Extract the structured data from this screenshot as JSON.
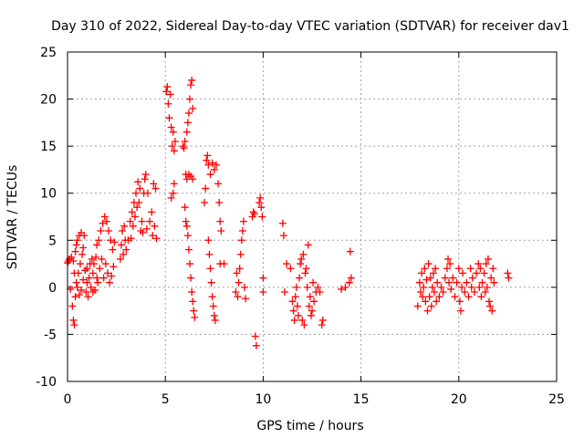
{
  "chart_data": {
    "type": "scatter",
    "title": "Day 310 of 2022, Sidereal Day-to-day VTEC variation (SDTVAR) for receiver dav1",
    "xlabel": "GPS time / hours",
    "ylabel": "SDTVAR / TECUs",
    "xlim": [
      0,
      25
    ],
    "ylim": [
      -10,
      25
    ],
    "xticks": [
      0,
      5,
      10,
      15,
      20,
      25
    ],
    "yticks": [
      -10,
      -5,
      0,
      5,
      10,
      15,
      20,
      25
    ],
    "grid": true,
    "marker": "+",
    "color": "#ff0000",
    "series": [
      {
        "name": "SDTVAR",
        "points": [
          [
            0.0,
            2.6
          ],
          [
            0.05,
            2.8
          ],
          [
            0.1,
            3.0
          ],
          [
            0.15,
            -0.2
          ],
          [
            0.2,
            3.2
          ],
          [
            0.25,
            -2.0
          ],
          [
            0.3,
            -3.5
          ],
          [
            0.3,
            2.8
          ],
          [
            0.35,
            -4.0
          ],
          [
            0.35,
            1.5
          ],
          [
            0.4,
            -1.0
          ],
          [
            0.4,
            3.8
          ],
          [
            0.45,
            0.5
          ],
          [
            0.45,
            4.5
          ],
          [
            0.5,
            5.0
          ],
          [
            0.5,
            0.0
          ],
          [
            0.55,
            1.5
          ],
          [
            0.6,
            5.5
          ],
          [
            0.6,
            -0.8
          ],
          [
            0.65,
            2.5
          ],
          [
            0.7,
            5.8
          ],
          [
            0.7,
            -0.3
          ],
          [
            0.75,
            3.5
          ],
          [
            0.8,
            4.2
          ],
          [
            0.8,
            0.8
          ],
          [
            0.85,
            5.5
          ],
          [
            0.9,
            1.8
          ],
          [
            0.95,
            -0.5
          ],
          [
            1.0,
            0.5
          ],
          [
            1.0,
            2.0
          ],
          [
            1.05,
            -1.0
          ],
          [
            1.1,
            1.0
          ],
          [
            1.15,
            2.5
          ],
          [
            1.2,
            0.0
          ],
          [
            1.25,
            3.0
          ],
          [
            1.3,
            -0.5
          ],
          [
            1.3,
            1.5
          ],
          [
            1.35,
            2.5
          ],
          [
            1.4,
            -0.3
          ],
          [
            1.45,
            3.2
          ],
          [
            1.5,
            1.0
          ],
          [
            1.5,
            4.5
          ],
          [
            1.55,
            0.5
          ],
          [
            1.6,
            5.0
          ],
          [
            1.65,
            2.0
          ],
          [
            1.7,
            6.0
          ],
          [
            1.75,
            3.0
          ],
          [
            1.8,
            6.8
          ],
          [
            1.85,
            1.0
          ],
          [
            1.9,
            7.5
          ],
          [
            1.95,
            2.5
          ],
          [
            2.0,
            7.0
          ],
          [
            2.05,
            1.5
          ],
          [
            2.1,
            6.0
          ],
          [
            2.15,
            0.5
          ],
          [
            2.2,
            5.0
          ],
          [
            2.25,
            1.2
          ],
          [
            2.3,
            4.0
          ],
          [
            2.35,
            2.2
          ],
          [
            2.4,
            4.8
          ],
          [
            2.7,
            3.0
          ],
          [
            2.75,
            4.5
          ],
          [
            2.8,
            6.0
          ],
          [
            2.85,
            3.5
          ],
          [
            2.9,
            6.5
          ],
          [
            2.95,
            5.0
          ],
          [
            3.0,
            4.0
          ],
          [
            3.1,
            5.0
          ],
          [
            3.2,
            7.0
          ],
          [
            3.25,
            5.2
          ],
          [
            3.3,
            8.0
          ],
          [
            3.35,
            6.5
          ],
          [
            3.4,
            9.0
          ],
          [
            3.45,
            7.5
          ],
          [
            3.5,
            10.0
          ],
          [
            3.55,
            8.5
          ],
          [
            3.6,
            11.2
          ],
          [
            3.65,
            9.0
          ],
          [
            3.7,
            10.5
          ],
          [
            3.75,
            6.0
          ],
          [
            3.8,
            7.0
          ],
          [
            3.85,
            5.8
          ],
          [
            3.9,
            10.0
          ],
          [
            3.95,
            11.5
          ],
          [
            4.0,
            12.0
          ],
          [
            4.05,
            6.2
          ],
          [
            4.1,
            10.0
          ],
          [
            4.2,
            7.0
          ],
          [
            4.3,
            8.0
          ],
          [
            4.35,
            5.5
          ],
          [
            4.4,
            11.0
          ],
          [
            4.45,
            6.5
          ],
          [
            4.5,
            10.5
          ],
          [
            4.55,
            5.2
          ],
          [
            5.05,
            20.8
          ],
          [
            5.1,
            21.3
          ],
          [
            5.15,
            19.5
          ],
          [
            5.2,
            18.0
          ],
          [
            5.25,
            20.5
          ],
          [
            5.3,
            17.0
          ],
          [
            5.35,
            15.0
          ],
          [
            5.4,
            16.5
          ],
          [
            5.45,
            14.5
          ],
          [
            5.5,
            15.5
          ],
          [
            5.4,
            10.0
          ],
          [
            5.45,
            11.0
          ],
          [
            5.3,
            9.5
          ],
          [
            5.9,
            15.0
          ],
          [
            5.95,
            14.8
          ],
          [
            6.0,
            15.5
          ],
          [
            6.05,
            12.0
          ],
          [
            6.1,
            16.5
          ],
          [
            6.15,
            17.5
          ],
          [
            6.2,
            18.5
          ],
          [
            6.25,
            20.0
          ],
          [
            6.3,
            21.5
          ],
          [
            6.35,
            22.0
          ],
          [
            6.4,
            19.0
          ],
          [
            6.1,
            11.5
          ],
          [
            6.2,
            12.0
          ],
          [
            6.3,
            11.8
          ],
          [
            6.4,
            11.5
          ],
          [
            6.0,
            8.5
          ],
          [
            6.05,
            7.0
          ],
          [
            6.1,
            6.5
          ],
          [
            6.15,
            5.5
          ],
          [
            6.2,
            4.0
          ],
          [
            6.25,
            2.5
          ],
          [
            6.3,
            1.0
          ],
          [
            6.35,
            -0.5
          ],
          [
            6.4,
            -1.5
          ],
          [
            6.45,
            -2.5
          ],
          [
            6.5,
            -3.2
          ],
          [
            7.0,
            9.0
          ],
          [
            7.05,
            10.5
          ],
          [
            7.1,
            13.5
          ],
          [
            7.15,
            14.0
          ],
          [
            7.2,
            13.0
          ],
          [
            7.3,
            12.0
          ],
          [
            7.4,
            13.2
          ],
          [
            7.5,
            12.5
          ],
          [
            7.6,
            13.0
          ],
          [
            7.2,
            5.0
          ],
          [
            7.25,
            3.5
          ],
          [
            7.3,
            2.0
          ],
          [
            7.35,
            0.5
          ],
          [
            7.4,
            -1.0
          ],
          [
            7.45,
            -2.0
          ],
          [
            7.5,
            -3.0
          ],
          [
            7.55,
            -3.5
          ],
          [
            7.7,
            11.0
          ],
          [
            7.75,
            9.0
          ],
          [
            7.8,
            7.0
          ],
          [
            7.85,
            6.0
          ],
          [
            7.8,
            2.5
          ],
          [
            8.0,
            2.5
          ],
          [
            8.6,
            -0.5
          ],
          [
            8.65,
            1.5
          ],
          [
            8.7,
            -1.0
          ],
          [
            8.75,
            0.5
          ],
          [
            8.8,
            2.0
          ],
          [
            8.85,
            3.5
          ],
          [
            8.9,
            5.0
          ],
          [
            8.95,
            6.0
          ],
          [
            9.0,
            7.0
          ],
          [
            9.05,
            0.0
          ],
          [
            9.1,
            -1.2
          ],
          [
            9.45,
            7.5
          ],
          [
            9.5,
            8.0
          ],
          [
            9.55,
            7.8
          ],
          [
            9.6,
            -5.2
          ],
          [
            9.65,
            -6.2
          ],
          [
            9.8,
            9.0
          ],
          [
            9.85,
            9.5
          ],
          [
            9.9,
            8.5
          ],
          [
            9.95,
            7.5
          ],
          [
            10.0,
            -0.5
          ],
          [
            10.0,
            1.0
          ],
          [
            11.0,
            6.8
          ],
          [
            11.05,
            5.5
          ],
          [
            11.1,
            -0.5
          ],
          [
            11.2,
            2.5
          ],
          [
            11.4,
            2.0
          ],
          [
            11.5,
            -1.5
          ],
          [
            11.55,
            -2.5
          ],
          [
            11.6,
            -3.5
          ],
          [
            11.65,
            -1.0
          ],
          [
            11.7,
            0.0
          ],
          [
            11.75,
            -2.0
          ],
          [
            11.8,
            -3.0
          ],
          [
            11.85,
            1.0
          ],
          [
            11.9,
            2.5
          ],
          [
            11.95,
            3.0
          ],
          [
            12.0,
            -3.5
          ],
          [
            12.05,
            3.5
          ],
          [
            12.1,
            -4.0
          ],
          [
            12.15,
            1.5
          ],
          [
            12.2,
            2.0
          ],
          [
            12.25,
            0.0
          ],
          [
            12.3,
            4.5
          ],
          [
            12.35,
            -2.0
          ],
          [
            12.4,
            -1.0
          ],
          [
            12.45,
            -3.0
          ],
          [
            12.5,
            -2.5
          ],
          [
            12.55,
            0.5
          ],
          [
            12.6,
            -1.5
          ],
          [
            12.7,
            -0.5
          ],
          [
            12.8,
            0.0
          ],
          [
            12.9,
            -0.5
          ],
          [
            13.0,
            -4.0
          ],
          [
            13.05,
            -3.5
          ],
          [
            14.0,
            -0.2
          ],
          [
            14.2,
            0.0
          ],
          [
            14.4,
            0.5
          ],
          [
            14.45,
            3.8
          ],
          [
            14.5,
            1.0
          ],
          [
            17.9,
            -2.0
          ],
          [
            18.0,
            0.5
          ],
          [
            18.05,
            -0.5
          ],
          [
            18.1,
            1.5
          ],
          [
            18.15,
            -1.0
          ],
          [
            18.2,
            0.0
          ],
          [
            18.25,
            2.0
          ],
          [
            18.3,
            -1.5
          ],
          [
            18.35,
            0.8
          ],
          [
            18.4,
            -2.5
          ],
          [
            18.45,
            2.5
          ],
          [
            18.5,
            -1.0
          ],
          [
            18.55,
            1.0
          ],
          [
            18.6,
            -2.0
          ],
          [
            18.65,
            0.0
          ],
          [
            18.7,
            1.5
          ],
          [
            18.75,
            -0.5
          ],
          [
            18.8,
            2.0
          ],
          [
            18.85,
            -1.5
          ],
          [
            18.9,
            0.5
          ],
          [
            19.0,
            -1.0
          ],
          [
            19.1,
            0.0
          ],
          [
            19.2,
            -0.5
          ],
          [
            19.3,
            1.0
          ],
          [
            19.4,
            2.0
          ],
          [
            19.45,
            3.0
          ],
          [
            19.5,
            0.5
          ],
          [
            19.55,
            2.5
          ],
          [
            19.6,
            -0.2
          ],
          [
            19.7,
            1.0
          ],
          [
            19.8,
            -1.0
          ],
          [
            19.9,
            0.5
          ],
          [
            20.0,
            2.0
          ],
          [
            20.05,
            -1.5
          ],
          [
            20.1,
            -2.5
          ],
          [
            20.15,
            0.0
          ],
          [
            20.2,
            1.5
          ],
          [
            20.3,
            -0.5
          ],
          [
            20.4,
            0.5
          ],
          [
            20.5,
            -1.0
          ],
          [
            20.6,
            2.0
          ],
          [
            20.65,
            0.0
          ],
          [
            20.7,
            1.0
          ],
          [
            20.8,
            -0.5
          ],
          [
            20.9,
            1.5
          ],
          [
            21.0,
            2.5
          ],
          [
            21.05,
            0.0
          ],
          [
            21.1,
            2.0
          ],
          [
            21.15,
            -1.0
          ],
          [
            21.2,
            0.5
          ],
          [
            21.3,
            1.5
          ],
          [
            21.35,
            -0.5
          ],
          [
            21.4,
            2.5
          ],
          [
            21.45,
            0.0
          ],
          [
            21.5,
            3.0
          ],
          [
            21.55,
            -1.5
          ],
          [
            21.6,
            -2.0
          ],
          [
            21.65,
            1.0
          ],
          [
            21.7,
            -2.5
          ],
          [
            21.75,
            2.0
          ],
          [
            21.8,
            0.5
          ],
          [
            22.5,
            1.5
          ],
          [
            22.55,
            1.0
          ]
        ]
      }
    ]
  }
}
